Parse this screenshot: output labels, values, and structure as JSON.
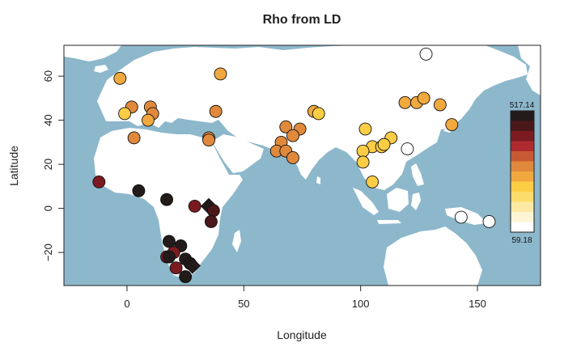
{
  "chart_data": {
    "type": "scatter",
    "title": "Rho from LD",
    "xlabel": "Longitude",
    "ylabel": "Latitude",
    "xlim": [
      -27,
      177
    ],
    "ylim": [
      -35,
      74
    ],
    "xticks": [
      0,
      50,
      100,
      150
    ],
    "yticks": [
      -20,
      0,
      20,
      40,
      60
    ],
    "xtick_labels": [
      "0",
      "50",
      "100",
      "150"
    ],
    "ytick_labels": [
      "−20",
      "0",
      "20",
      "40",
      "60"
    ],
    "background": "#8db8cc",
    "land_color": "#ffffff",
    "color_scale": {
      "max_label": "517.14",
      "min_label": "59.18",
      "min": 59.18,
      "max": 517.14,
      "colors": [
        "#ffffff",
        "#fdf5d4",
        "#fde9a4",
        "#fddc6c",
        "#fccd45",
        "#f0a83f",
        "#e0893c",
        "#c75a34",
        "#ad2b2e",
        "#7b1b21",
        "#4a1819",
        "#231a1a"
      ]
    },
    "points": [
      {
        "x": -3,
        "y": 59,
        "v": 250,
        "shape": "circle"
      },
      {
        "x": 40,
        "y": 61,
        "v": 250,
        "shape": "circle"
      },
      {
        "x": 128,
        "y": 70,
        "v": 62,
        "shape": "circle"
      },
      {
        "x": 2,
        "y": 46,
        "v": 300,
        "shape": "circle"
      },
      {
        "x": -1,
        "y": 43,
        "v": 240,
        "shape": "circle"
      },
      {
        "x": 10,
        "y": 46,
        "v": 300,
        "shape": "circle"
      },
      {
        "x": 11,
        "y": 43,
        "v": 300,
        "shape": "circle"
      },
      {
        "x": 9,
        "y": 40,
        "v": 250,
        "shape": "circle"
      },
      {
        "x": 38,
        "y": 44,
        "v": 310,
        "shape": "circle"
      },
      {
        "x": 3,
        "y": 32,
        "v": 300,
        "shape": "circle"
      },
      {
        "x": 35,
        "y": 32,
        "v": 310,
        "shape": "circle"
      },
      {
        "x": 35,
        "y": 31,
        "v": 310,
        "shape": "circle"
      },
      {
        "x": 68,
        "y": 37,
        "v": 310,
        "shape": "circle"
      },
      {
        "x": 74,
        "y": 36,
        "v": 310,
        "shape": "circle"
      },
      {
        "x": 80,
        "y": 44,
        "v": 250,
        "shape": "circle"
      },
      {
        "x": 82,
        "y": 43,
        "v": 240,
        "shape": "circle"
      },
      {
        "x": 66,
        "y": 30,
        "v": 310,
        "shape": "circle"
      },
      {
        "x": 71,
        "y": 33,
        "v": 320,
        "shape": "circle"
      },
      {
        "x": 64,
        "y": 26,
        "v": 310,
        "shape": "circle"
      },
      {
        "x": 68,
        "y": 26,
        "v": 310,
        "shape": "circle"
      },
      {
        "x": 71,
        "y": 23,
        "v": 310,
        "shape": "circle"
      },
      {
        "x": 102,
        "y": 36,
        "v": 240,
        "shape": "circle"
      },
      {
        "x": 113,
        "y": 32,
        "v": 240,
        "shape": "circle"
      },
      {
        "x": 105,
        "y": 28,
        "v": 240,
        "shape": "circle"
      },
      {
        "x": 109,
        "y": 28,
        "v": 230,
        "shape": "circle"
      },
      {
        "x": 101,
        "y": 26,
        "v": 240,
        "shape": "circle"
      },
      {
        "x": 110,
        "y": 29,
        "v": 240,
        "shape": "circle"
      },
      {
        "x": 101,
        "y": 21,
        "v": 240,
        "shape": "circle"
      },
      {
        "x": 120,
        "y": 27,
        "v": 70,
        "shape": "circle"
      },
      {
        "x": 105,
        "y": 12,
        "v": 240,
        "shape": "circle"
      },
      {
        "x": 119,
        "y": 48,
        "v": 250,
        "shape": "circle"
      },
      {
        "x": 124,
        "y": 48,
        "v": 250,
        "shape": "circle"
      },
      {
        "x": 127,
        "y": 50,
        "v": 250,
        "shape": "circle"
      },
      {
        "x": 134,
        "y": 47,
        "v": 250,
        "shape": "circle"
      },
      {
        "x": 139,
        "y": 38,
        "v": 250,
        "shape": "circle"
      },
      {
        "x": 143,
        "y": -4,
        "v": 62,
        "shape": "circle"
      },
      {
        "x": 155,
        "y": -6,
        "v": 62,
        "shape": "circle"
      },
      {
        "x": -12,
        "y": 12,
        "v": 430,
        "shape": "circle"
      },
      {
        "x": 5,
        "y": 8,
        "v": 480,
        "shape": "circle"
      },
      {
        "x": 17,
        "y": 4,
        "v": 490,
        "shape": "circle"
      },
      {
        "x": 29,
        "y": 1,
        "v": 430,
        "shape": "circle"
      },
      {
        "x": 35,
        "y": 1,
        "v": 500,
        "shape": "diamond"
      },
      {
        "x": 37,
        "y": -1,
        "v": 470,
        "shape": "circle"
      },
      {
        "x": 36,
        "y": -6,
        "v": 470,
        "shape": "circle"
      },
      {
        "x": 18,
        "y": -15,
        "v": 480,
        "shape": "circle"
      },
      {
        "x": 23,
        "y": -17,
        "v": 510,
        "shape": "circle"
      },
      {
        "x": 20,
        "y": -20,
        "v": 430,
        "shape": "circle"
      },
      {
        "x": 17,
        "y": -22,
        "v": 430,
        "shape": "circle"
      },
      {
        "x": 18,
        "y": -22,
        "v": 480,
        "shape": "circle"
      },
      {
        "x": 25,
        "y": -23,
        "v": 490,
        "shape": "circle"
      },
      {
        "x": 27,
        "y": -25,
        "v": 500,
        "shape": "circle"
      },
      {
        "x": 28,
        "y": -26,
        "v": 517,
        "shape": "diamond"
      },
      {
        "x": 21,
        "y": -27,
        "v": 430,
        "shape": "circle"
      },
      {
        "x": 25,
        "y": -31,
        "v": 500,
        "shape": "circle"
      }
    ]
  }
}
